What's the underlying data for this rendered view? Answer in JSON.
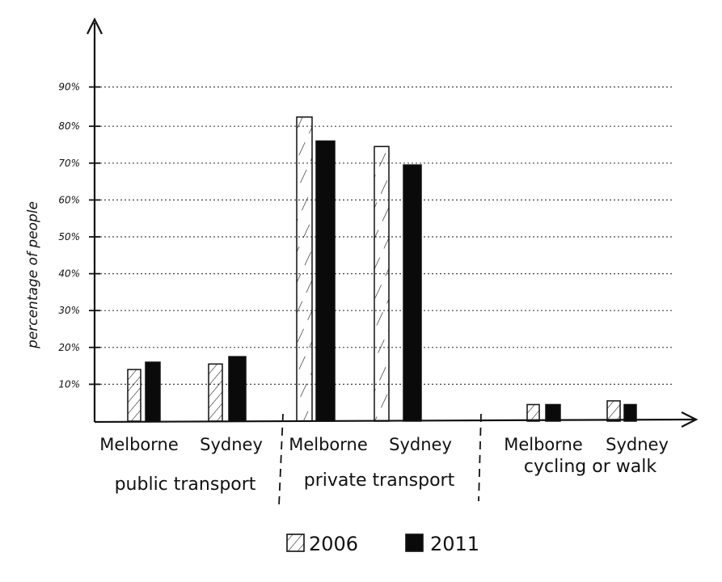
{
  "chart_data": {
    "type": "bar",
    "ylabel": "percentage of people",
    "yticks": [
      "10%",
      "20%",
      "30%",
      "40%",
      "50%",
      "60%",
      "70%",
      "80%",
      "90%"
    ],
    "ylim": [
      0,
      100
    ],
    "categories": [
      "Melborne",
      "Sydney",
      "Melborne",
      "Sydney",
      "Melborne",
      "Sydney"
    ],
    "groups": [
      {
        "label": "public transport",
        "categories": [
          0,
          1
        ]
      },
      {
        "label": "private transport",
        "categories": [
          2,
          3
        ]
      },
      {
        "label": "cycling or walk",
        "categories": [
          4,
          5
        ]
      }
    ],
    "series": [
      {
        "name": "2006",
        "values": [
          14,
          15.5,
          82.5,
          74.5,
          4.5,
          5.5
        ]
      },
      {
        "name": "2011",
        "values": [
          16,
          17.5,
          76,
          69.5,
          4.5,
          4.5
        ]
      }
    ],
    "grid": true,
    "legend": "bottom-center"
  }
}
